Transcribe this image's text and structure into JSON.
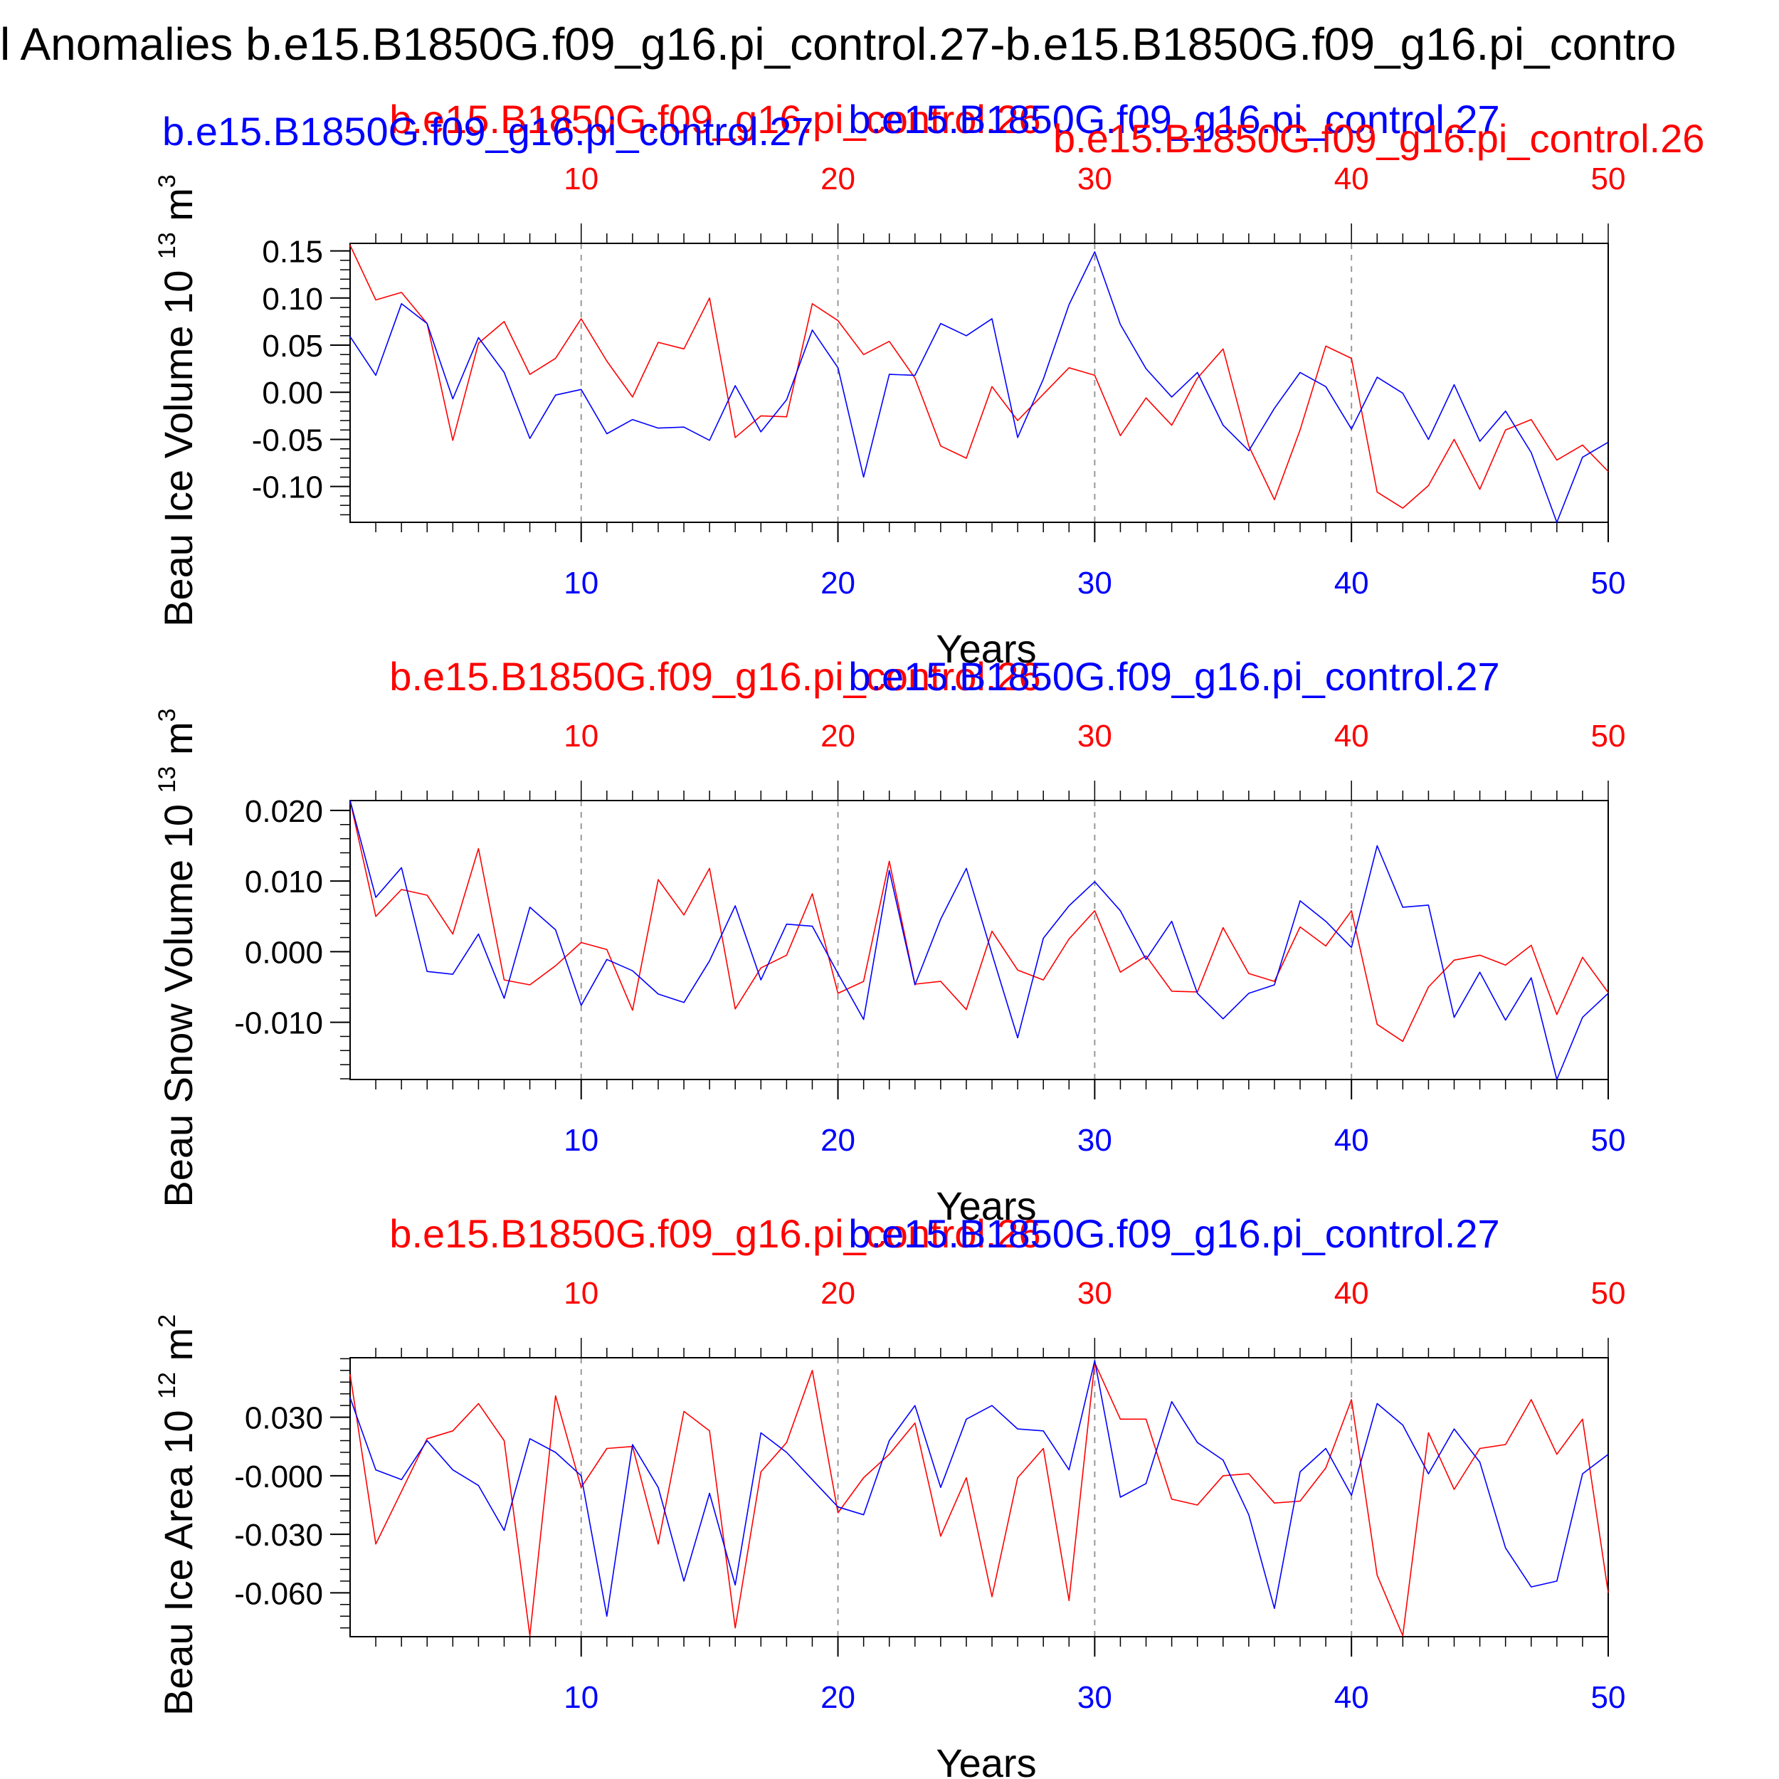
{
  "figure": {
    "title": "l Anomalies b.e15.B1850G.f09_g16.pi_control.27-b.e15.B1850G.f09_g16.pi_contro",
    "colors": {
      "red": "#ff0000",
      "blue": "#0000ff",
      "frame": "#000000",
      "grid": "#999999"
    }
  },
  "chart_data": [
    {
      "type": "line",
      "ylabel": "Beau Ice Volume 10",
      "ylabel_exp": "13",
      "ylabel_unit": "m",
      "ylabel_unit_exp": "3",
      "xlabel": "Years",
      "top_label_red": "b.e15.B1850G.f09_g16.pi_control.26",
      "top_label_blue": "b.e15.B1850G.f09_g16.pi_control.27",
      "extra_top_label_blue": "b.e15.B1850G.f09_g16.pi_control.27",
      "extra_top_label_red": "b.e15.B1850G.f09_g16.pi_control.26",
      "ylim": [
        -0.138,
        0.158
      ],
      "xlim": [
        1,
        50
      ],
      "yticks": [
        0.15,
        0.1,
        0.05,
        0.0,
        -0.05,
        -0.1
      ],
      "ytick_labels": [
        "0.15",
        "0.10",
        "0.05",
        "0.00",
        "-0.05",
        "-0.10"
      ],
      "xticks": [
        10,
        20,
        30,
        40,
        50
      ],
      "xtick_labels": [
        "10",
        "20",
        "30",
        "40",
        "50"
      ],
      "grid_x": [
        10,
        20,
        30,
        40
      ],
      "x": [
        1,
        2,
        3,
        4,
        5,
        6,
        7,
        8,
        9,
        10,
        11,
        12,
        13,
        14,
        15,
        16,
        17,
        18,
        19,
        20,
        21,
        22,
        23,
        24,
        25,
        26,
        27,
        28,
        29,
        30,
        31,
        32,
        33,
        34,
        35,
        36,
        37,
        38,
        39,
        40,
        41,
        42,
        43,
        44,
        45,
        46,
        47,
        48,
        49,
        50
      ],
      "series": [
        {
          "color": "red",
          "values": [
            0.156,
            0.098,
            0.106,
            0.073,
            -0.051,
            0.052,
            0.075,
            0.019,
            0.036,
            0.078,
            0.033,
            -0.005,
            0.053,
            0.046,
            0.1,
            -0.048,
            -0.025,
            -0.026,
            0.094,
            0.076,
            0.04,
            0.054,
            0.015,
            -0.057,
            -0.07,
            0.006,
            -0.03,
            -0.002,
            0.026,
            0.018,
            -0.046,
            -0.006,
            -0.035,
            0.015,
            0.046,
            -0.057,
            -0.114,
            -0.04,
            0.049,
            0.036,
            -0.106,
            -0.123,
            -0.099,
            -0.05,
            -0.103,
            -0.04,
            -0.029,
            -0.072,
            -0.056,
            -0.084
          ]
        },
        {
          "color": "blue",
          "values": [
            0.059,
            0.018,
            0.094,
            0.073,
            -0.007,
            0.058,
            0.021,
            -0.049,
            -0.003,
            0.003,
            -0.044,
            -0.029,
            -0.038,
            -0.037,
            -0.051,
            0.007,
            -0.042,
            -0.008,
            0.066,
            0.026,
            -0.09,
            0.019,
            0.018,
            0.073,
            0.06,
            0.078,
            -0.048,
            0.014,
            0.093,
            0.149,
            0.072,
            0.025,
            -0.005,
            0.021,
            -0.035,
            -0.062,
            -0.017,
            0.021,
            0.006,
            -0.039,
            0.016,
            -0.001,
            -0.05,
            0.008,
            -0.052,
            -0.02,
            -0.064,
            -0.138,
            -0.069,
            -0.053
          ]
        }
      ]
    },
    {
      "type": "line",
      "ylabel": "Beau Snow Volume 10",
      "ylabel_exp": "13",
      "ylabel_unit": "m",
      "ylabel_unit_exp": "3",
      "xlabel": "Years",
      "top_label_red": "b.e15.B1850G.f09_g16.pi_control.26",
      "top_label_blue": "b.e15.B1850G.f09_g16.pi_control.27",
      "ylim": [
        -0.0181,
        0.0214
      ],
      "xlim": [
        1,
        50
      ],
      "yticks": [
        0.02,
        0.01,
        0.0,
        -0.01
      ],
      "ytick_labels": [
        "0.020",
        "0.010",
        "0.000",
        "-0.010"
      ],
      "xticks": [
        10,
        20,
        30,
        40,
        50
      ],
      "xtick_labels": [
        "10",
        "20",
        "30",
        "40",
        "50"
      ],
      "grid_x": [
        10,
        20,
        30,
        40
      ],
      "x": [
        1,
        2,
        3,
        4,
        5,
        6,
        7,
        8,
        9,
        10,
        11,
        12,
        13,
        14,
        15,
        16,
        17,
        18,
        19,
        20,
        21,
        22,
        23,
        24,
        25,
        26,
        27,
        28,
        29,
        30,
        31,
        32,
        33,
        34,
        35,
        36,
        37,
        38,
        39,
        40,
        41,
        42,
        43,
        44,
        45,
        46,
        47,
        48,
        49,
        50
      ],
      "series": [
        {
          "color": "red",
          "values": [
            0.0214,
            0.005,
            0.0088,
            0.008,
            0.0025,
            0.0146,
            -0.004,
            -0.0047,
            -0.002,
            0.0013,
            0.0003,
            -0.0083,
            0.0102,
            0.0052,
            0.0118,
            -0.0081,
            -0.0023,
            -0.0005,
            0.0082,
            -0.0059,
            -0.0042,
            0.0128,
            -0.0046,
            -0.0042,
            -0.0082,
            0.0029,
            -0.0026,
            -0.004,
            0.0018,
            0.0058,
            -0.0029,
            -0.0006,
            -0.0056,
            -0.0057,
            0.0034,
            -0.0031,
            -0.0042,
            0.0035,
            0.0008,
            0.0058,
            -0.0103,
            -0.0127,
            -0.005,
            -0.0012,
            -0.0005,
            -0.0019,
            0.0009,
            -0.0089,
            -0.0008,
            -0.0058
          ]
        },
        {
          "color": "blue",
          "values": [
            0.0214,
            0.0077,
            0.0119,
            -0.0028,
            -0.0032,
            0.0025,
            -0.0066,
            0.0063,
            0.0031,
            -0.0076,
            -0.0011,
            -0.0027,
            -0.006,
            -0.0072,
            -0.0013,
            0.0065,
            -0.004,
            0.0039,
            0.0036,
            -0.0031,
            -0.0096,
            0.0115,
            -0.0047,
            0.0046,
            0.0118,
            -0.0003,
            -0.0122,
            0.0019,
            0.0065,
            0.0099,
            0.0058,
            -0.0011,
            0.0043,
            -0.0059,
            -0.0095,
            -0.0059,
            -0.0047,
            0.0072,
            0.0043,
            0.0006,
            0.015,
            0.0063,
            0.0066,
            -0.0093,
            -0.0029,
            -0.0097,
            -0.0037,
            -0.0181,
            -0.0093,
            -0.0059
          ]
        }
      ]
    },
    {
      "type": "line",
      "ylabel": "Beau Ice Area 10",
      "ylabel_exp": "12",
      "ylabel_unit": "m",
      "ylabel_unit_exp": "2",
      "xlabel": "Years",
      "top_label_red": "b.e15.B1850G.f09_g16.pi_control.26",
      "top_label_blue": "b.e15.B1850G.f09_g16.pi_control.27",
      "ylim": [
        -0.0825,
        0.0605
      ],
      "xlim": [
        1,
        50
      ],
      "yticks": [
        0.03,
        0.0,
        -0.03,
        -0.06
      ],
      "ytick_labels": [
        "0.030",
        "-0.000",
        "-0.030",
        "-0.060"
      ],
      "xticks": [
        10,
        20,
        30,
        40,
        50
      ],
      "xtick_labels": [
        "10",
        "20",
        "30",
        "40",
        "50"
      ],
      "grid_x": [
        10,
        20,
        30,
        40
      ],
      "x": [
        1,
        2,
        3,
        4,
        5,
        6,
        7,
        8,
        9,
        10,
        11,
        12,
        13,
        14,
        15,
        16,
        17,
        18,
        19,
        20,
        21,
        22,
        23,
        24,
        25,
        26,
        27,
        28,
        29,
        30,
        31,
        32,
        33,
        34,
        35,
        36,
        37,
        38,
        39,
        40,
        41,
        42,
        43,
        44,
        45,
        46,
        47,
        48,
        49,
        50
      ],
      "series": [
        {
          "color": "red",
          "values": [
            0.052,
            -0.035,
            -0.008,
            0.019,
            0.023,
            0.037,
            0.018,
            -0.082,
            0.041,
            -0.006,
            0.014,
            0.015,
            -0.035,
            0.033,
            0.023,
            -0.078,
            0.002,
            0.017,
            0.054,
            -0.019,
            -0.001,
            0.011,
            0.027,
            -0.031,
            -0.001,
            -0.062,
            -0.001,
            0.014,
            -0.064,
            0.058,
            0.029,
            0.029,
            -0.012,
            -0.015,
            0.0,
            0.001,
            -0.014,
            -0.013,
            0.004,
            0.039,
            -0.051,
            -0.082,
            0.022,
            -0.007,
            0.014,
            0.016,
            0.039,
            0.011,
            0.029,
            -0.06
          ]
        },
        {
          "color": "blue",
          "values": [
            0.04,
            0.003,
            -0.002,
            0.018,
            0.003,
            -0.005,
            -0.028,
            0.019,
            0.012,
            0.0,
            -0.072,
            0.016,
            -0.006,
            -0.054,
            -0.009,
            -0.056,
            0.022,
            0.012,
            -0.002,
            -0.016,
            -0.02,
            0.018,
            0.036,
            -0.006,
            0.029,
            0.036,
            0.024,
            0.023,
            0.003,
            0.059,
            -0.011,
            -0.004,
            0.038,
            0.017,
            0.008,
            -0.02,
            -0.068,
            0.002,
            0.014,
            -0.01,
            0.037,
            0.026,
            0.001,
            0.024,
            0.007,
            -0.037,
            -0.057,
            -0.054,
            0.001,
            0.011
          ]
        }
      ]
    }
  ]
}
